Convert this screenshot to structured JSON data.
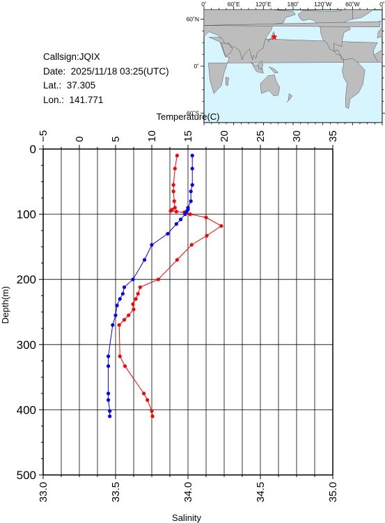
{
  "station": {
    "callsign_label": "Callsign:",
    "callsign": "JQIX",
    "date_label": "Date:",
    "date": "2025/11/18 03:25(UTC)",
    "lat_label": "Lat.:",
    "lat": "37.305",
    "lon_label": "Lon.:",
    "lon": "141.771"
  },
  "map": {
    "top_labels": [
      "0˚",
      "60˚E",
      "120˚E",
      "180˚",
      "120˚W",
      "60˚W",
      "0˚"
    ],
    "left_labels": [
      "60˚N",
      "0˚",
      "60˚S"
    ],
    "ocean_color": "#d7f5ff",
    "land_color": "#bdbdbd",
    "marker_color": "#ff0000"
  },
  "chart_data": {
    "type": "line",
    "top_axis": {
      "label": "Temperature(C)",
      "ticks": [
        "−5",
        "0",
        "5",
        "10",
        "15",
        "20",
        "25",
        "30",
        "35"
      ],
      "range": [
        -5,
        35
      ]
    },
    "bottom_axis": {
      "label": "Salinity",
      "ticks": [
        "33.0",
        "33.5",
        "34.0",
        "34.5",
        "35.0"
      ],
      "range": [
        33.0,
        35.0
      ]
    },
    "y_axis": {
      "label": "Depth(m)",
      "ticks": [
        "0",
        "100",
        "200",
        "300",
        "400",
        "500"
      ],
      "range": [
        0,
        500
      ],
      "inverted": true
    },
    "grid": true,
    "series": [
      {
        "axis": "top",
        "color": "#ff0000",
        "points": [
          [
            13.5,
            10
          ],
          [
            13.2,
            30
          ],
          [
            13.0,
            55
          ],
          [
            13.0,
            65
          ],
          [
            13.1,
            80
          ],
          [
            13.2,
            90
          ],
          [
            12.8,
            93
          ],
          [
            12.6,
            95
          ],
          [
            13.4,
            96
          ],
          [
            14.5,
            97
          ],
          [
            15.3,
            100
          ],
          [
            17.5,
            105
          ],
          [
            19.6,
            118
          ],
          [
            17.6,
            133
          ],
          [
            15.5,
            147
          ],
          [
            13.5,
            170
          ],
          [
            10.9,
            200
          ],
          [
            8.4,
            212
          ],
          [
            8.1,
            222
          ],
          [
            7.8,
            230
          ],
          [
            7.4,
            238
          ],
          [
            7.5,
            246
          ],
          [
            6.8,
            255
          ],
          [
            6.2,
            262
          ],
          [
            5.5,
            270
          ],
          [
            5.6,
            318
          ],
          [
            6.3,
            333
          ],
          [
            8.9,
            375
          ],
          [
            9.4,
            385
          ],
          [
            10.0,
            402
          ],
          [
            10.1,
            410
          ]
        ]
      },
      {
        "axis": "bottom",
        "color": "#0000ff",
        "points": [
          [
            34.03,
            10
          ],
          [
            34.03,
            30
          ],
          [
            34.03,
            55
          ],
          [
            34.02,
            65
          ],
          [
            34.02,
            80
          ],
          [
            34.0,
            90
          ],
          [
            34.0,
            93
          ],
          [
            33.99,
            96
          ],
          [
            33.98,
            100
          ],
          [
            33.95,
            108
          ],
          [
            33.92,
            115
          ],
          [
            33.86,
            130
          ],
          [
            33.75,
            147
          ],
          [
            33.7,
            170
          ],
          [
            33.62,
            200
          ],
          [
            33.56,
            212
          ],
          [
            33.55,
            222
          ],
          [
            33.53,
            230
          ],
          [
            33.51,
            240
          ],
          [
            33.5,
            255
          ],
          [
            33.48,
            270
          ],
          [
            33.45,
            318
          ],
          [
            33.45,
            333
          ],
          [
            33.45,
            375
          ],
          [
            33.45,
            385
          ],
          [
            33.46,
            402
          ],
          [
            33.46,
            410
          ]
        ]
      }
    ]
  }
}
